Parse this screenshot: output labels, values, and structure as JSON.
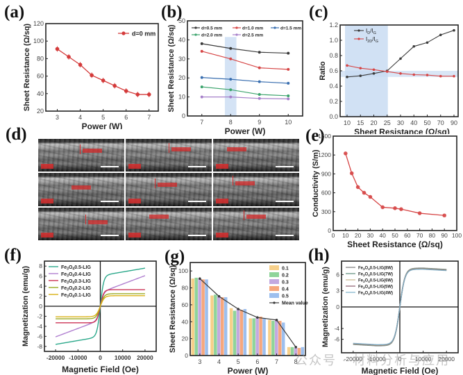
{
  "figure": {
    "watermark": "公众号 · 材料分析与应用"
  },
  "panels": {
    "a": {
      "label": "(a)"
    },
    "b": {
      "label": "(b)"
    },
    "c": {
      "label": "(c)"
    },
    "d": {
      "label": "(d)",
      "sem_images": 9
    },
    "e": {
      "label": "(e)"
    },
    "f": {
      "label": "(f)"
    },
    "g": {
      "label": "(g)"
    },
    "h": {
      "label": "(h)"
    }
  },
  "chart_data": [
    {
      "id": "a",
      "type": "line",
      "title": "",
      "xlabel": "Power (W)",
      "ylabel": "Sheet Resistance (Ω/sq)",
      "xlim": [
        2.5,
        7.4
      ],
      "ylim": [
        20,
        120
      ],
      "xticks": [
        3,
        4,
        5,
        6,
        7
      ],
      "yticks": [
        20,
        40,
        60,
        80,
        100,
        120
      ],
      "legend_position": "top-right",
      "series": [
        {
          "name": "d=0 mm",
          "color": "#d43a3a",
          "x": [
            3,
            3.5,
            4,
            4.5,
            5,
            5.5,
            6,
            6.5,
            7
          ],
          "y": [
            91,
            82,
            73,
            61,
            55,
            49,
            43,
            39,
            39
          ]
        }
      ]
    },
    {
      "id": "b",
      "type": "line",
      "title": "",
      "xlabel": "Power (W)",
      "ylabel": "Sheet Resistance (Ω/sq)",
      "xlim": [
        6.5,
        10.5
      ],
      "ylim": [
        0,
        50
      ],
      "xticks": [
        7,
        8,
        9,
        10
      ],
      "yticks": [
        0,
        10,
        20,
        30,
        40,
        50
      ],
      "highlight_x": [
        7.8,
        8.2
      ],
      "legend_position": "top",
      "series": [
        {
          "name": "d=0.5 mm",
          "color": "#3a3a3a",
          "x": [
            7,
            8,
            9,
            10
          ],
          "y": [
            38,
            35.5,
            33.5,
            33
          ]
        },
        {
          "name": "d=1.0 mm",
          "color": "#d64545",
          "x": [
            7,
            8,
            9,
            10
          ],
          "y": [
            34,
            30,
            25.3,
            24.5
          ]
        },
        {
          "name": "d=1.5 mm",
          "color": "#3a6fb0",
          "x": [
            7,
            8,
            9,
            10
          ],
          "y": [
            20.2,
            19.3,
            18,
            17.2
          ]
        },
        {
          "name": "d=2.0 mm",
          "color": "#3aa36b",
          "x": [
            7,
            8,
            9,
            10
          ],
          "y": [
            15.3,
            13.8,
            11.3,
            10.6
          ]
        },
        {
          "name": "d=2.5 mm",
          "color": "#a57fc9",
          "x": [
            7,
            8,
            9,
            10
          ],
          "y": [
            10,
            10,
            9.2,
            9
          ]
        }
      ]
    },
    {
      "id": "c",
      "type": "line",
      "title": "",
      "xlabel": "Sheet Resistance (Ω/sq)",
      "ylabel": "Ratio",
      "categories": [
        "10",
        "15",
        "20",
        "25",
        "30",
        "40",
        "50",
        "70",
        "90"
      ],
      "ylim": [
        0,
        1.2
      ],
      "yticks": [
        0.0,
        0.2,
        0.4,
        0.6,
        0.8,
        1.0,
        1.2
      ],
      "highlight_x_categories": [
        "10",
        "25"
      ],
      "highlight_y": [
        0.52,
        0.6
      ],
      "legend_position": "top-left",
      "series": [
        {
          "name": "ID/IG",
          "name_main": "I",
          "name_sub1": "D",
          "name_mid": "/I",
          "name_sub2": "G",
          "color": "#3a3a3a",
          "values": [
            0.52,
            0.535,
            0.565,
            0.6,
            0.76,
            0.92,
            0.97,
            1.07,
            1.13
          ]
        },
        {
          "name": "I2D/IG",
          "name_main": "I",
          "name_sub1": "2D",
          "name_mid": "/I",
          "name_sub2": "G",
          "color": "#d64545",
          "values": [
            0.67,
            0.635,
            0.615,
            0.59,
            0.565,
            0.55,
            0.545,
            0.53,
            0.53
          ]
        }
      ]
    },
    {
      "id": "e",
      "type": "line",
      "title": "",
      "xlabel": "Sheet Resistance (Ω/sq)",
      "ylabel": "Conductivity (S/m)",
      "xlim": [
        0,
        100
      ],
      "ylim": [
        0,
        1500
      ],
      "xticks": [
        0,
        10,
        20,
        30,
        40,
        50,
        60,
        70,
        80,
        90,
        100
      ],
      "yticks": [
        0,
        300,
        600,
        900,
        1200,
        1500
      ],
      "series": [
        {
          "name": "Conductivity",
          "color": "#d64545",
          "x": [
            10,
            15,
            20,
            25,
            30,
            40,
            50,
            55,
            70,
            90
          ],
          "y": [
            1225,
            910,
            690,
            600,
            535,
            370,
            355,
            340,
            275,
            240
          ]
        }
      ]
    },
    {
      "id": "f",
      "type": "line",
      "title": "",
      "xlabel": "Magnetic Field (Oe)",
      "ylabel": "Magnetization (emu/g)",
      "xlim": [
        -25000,
        25000
      ],
      "ylim": [
        -9,
        9
      ],
      "xticks": [
        -20000,
        -10000,
        0,
        10000,
        20000
      ],
      "yticks": [
        -8,
        -6,
        -4,
        -2,
        0,
        2,
        4,
        6,
        8
      ],
      "legend_position": "top-left",
      "series": [
        {
          "name": "Fe3O4 0.5-LIG",
          "label_main": "Fe",
          "label_sub1": "3",
          "label_mid": "O",
          "label_sub2": "4",
          "label_tail": "0.5-LIG",
          "color": "#2aa88a",
          "saturation": 7.6,
          "slope": 0.0,
          "sharpness": 2200
        },
        {
          "name": "Fe3O4 0.4-LIG",
          "label_main": "Fe",
          "label_sub1": "3",
          "label_mid": "O",
          "label_sub2": "4",
          "label_tail": "0.4-LIG",
          "color": "#b07fd0",
          "saturation": 6.1,
          "slope": 0.0,
          "sharpness": 6500
        },
        {
          "name": "Fe3O4 0.3-LIG",
          "label_main": "Fe",
          "label_sub1": "3",
          "label_mid": "O",
          "label_sub2": "4",
          "label_tail": "0.3-LIG",
          "color": "#cc3355",
          "saturation": 3.3,
          "slope": 0.0,
          "sharpness": 1500
        },
        {
          "name": "Fe3O4 0.2-LIG",
          "label_main": "Fe",
          "label_sub1": "3",
          "label_mid": "O",
          "label_sub2": "4",
          "label_tail": "0.2-LIG",
          "color": "#9aaa22",
          "saturation": 2.5,
          "slope": 0.0,
          "sharpness": 1700
        },
        {
          "name": "Fe3O4 0.1-LIG",
          "label_main": "Fe",
          "label_sub1": "3",
          "label_mid": "O",
          "label_sub2": "4",
          "label_tail": "0.1-LIG",
          "color": "#d9b014",
          "saturation": 2.1,
          "slope": 0.0,
          "sharpness": 1800
        }
      ]
    },
    {
      "id": "g",
      "type": "bar",
      "title": "",
      "xlabel": "Power (W)",
      "ylabel": "Sheet Resistance (Ω/sq)",
      "categories": [
        "3",
        "4",
        "5",
        "6",
        "7",
        "8"
      ],
      "ylim": [
        0,
        110
      ],
      "yticks": [
        0,
        20,
        40,
        60,
        80,
        100
      ],
      "legend_position": "top-right",
      "series": [
        {
          "name": "0.1",
          "color": "#f7d08a",
          "values": [
            91,
            71,
            56,
            44,
            42,
            10
          ]
        },
        {
          "name": "0.2",
          "color": "#8fd49a",
          "values": [
            92,
            72,
            53,
            44,
            41,
            10
          ]
        },
        {
          "name": "0.3",
          "color": "#c3a9e0",
          "values": [
            91,
            70,
            55,
            45,
            42,
            9
          ]
        },
        {
          "name": "0.4",
          "color": "#f6a77d",
          "values": [
            90,
            69,
            54,
            46,
            41,
            9
          ]
        },
        {
          "name": "0.5",
          "color": "#9dbfee",
          "values": [
            90,
            69,
            55,
            44,
            39,
            10
          ]
        }
      ],
      "line_series": {
        "name": "Mean value",
        "color": "#3a3a3a",
        "values": [
          91,
          70,
          55,
          45,
          42,
          10
        ]
      }
    },
    {
      "id": "h",
      "type": "line",
      "title": "",
      "xlabel": "Magnetic Field (Oe)",
      "ylabel": "Magnetization (emu/g)",
      "xlim": [
        -25000,
        25000
      ],
      "ylim": [
        -8.5,
        8.5
      ],
      "xticks": [
        -20000,
        -10000,
        0,
        10000,
        20000
      ],
      "yticks": [
        -6,
        -4,
        0,
        3,
        6
      ],
      "legend_position": "top-left",
      "series": [
        {
          "name": "Fe3O4 0.5-LIG(8W)",
          "label_tail": "0.5-LIG(8W)",
          "color": "#777777",
          "saturation": 7.2
        },
        {
          "name": "Fe3O4 0.5-LIG(7W)",
          "label_tail": "0.5-LIG(7W)",
          "color": "#5a8a7a",
          "saturation": 7.15
        },
        {
          "name": "Fe3O4 0.5-LIG(6W)",
          "label_tail": "0.5-LIG(6W)",
          "color": "#c9b58a",
          "saturation": 7.1
        },
        {
          "name": "Fe3O4 0.5-LIG(5W)",
          "label_tail": "0.5-LIG(5W)",
          "color": "#8a5a6a",
          "saturation": 7.05
        },
        {
          "name": "Fe3O4 0.5-LIG(4W)",
          "label_tail": "0.5-LIG(4W)",
          "color": "#7ab0c9",
          "saturation": 7.0
        }
      ]
    }
  ]
}
